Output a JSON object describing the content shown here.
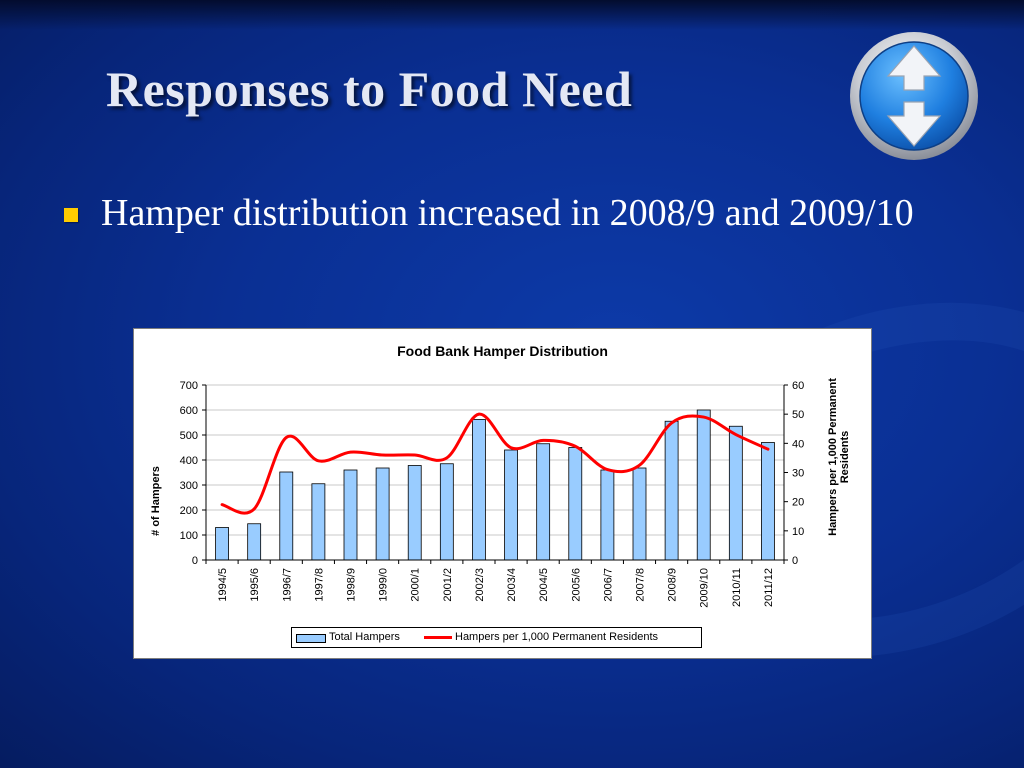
{
  "slide": {
    "title": "Responses to Food Need",
    "bullet": "Hamper distribution increased in 2008/9 and 2009/10",
    "logo_icon": "up-down-arrows-icon"
  },
  "colors": {
    "background": "#0a2f93",
    "bullet": "#ffcc00",
    "bar_fill": "#99ccff",
    "line": "#ff0000"
  },
  "chart_data": {
    "type": "bar",
    "title": "Food Bank Hamper Distribution",
    "ylabel": "# of Hampers",
    "y2label": "Hampers per 1,000 Permanent Residents",
    "categories": [
      "1994/5",
      "1995/6",
      "1996/7",
      "1997/8",
      "1998/9",
      "1999/0",
      "2000/1",
      "2001/2",
      "2002/3",
      "2003/4",
      "2004/5",
      "2005/6",
      "2006/7",
      "2007/8",
      "2008/9",
      "2009/10",
      "2010/11",
      "2011/12"
    ],
    "series": [
      {
        "name": "Total Hampers",
        "type": "bar",
        "axis": "left",
        "values": [
          130,
          145,
          352,
          305,
          360,
          368,
          378,
          385,
          562,
          440,
          465,
          450,
          360,
          368,
          555,
          600,
          535,
          470
        ]
      },
      {
        "name": "Hampers per 1,000 Permanent Residents",
        "type": "line",
        "axis": "right",
        "values": [
          19,
          17.5,
          42,
          34,
          37,
          36,
          36,
          35,
          50,
          38.5,
          41,
          39,
          31,
          32.5,
          47,
          49,
          43,
          38
        ]
      }
    ],
    "ylim": [
      0,
      700
    ],
    "yticks": [
      0,
      100,
      200,
      300,
      400,
      500,
      600,
      700
    ],
    "y2lim": [
      0,
      60
    ],
    "y2ticks": [
      0,
      10,
      20,
      30,
      40,
      50,
      60
    ],
    "grid": true,
    "legend_position": "bottom"
  }
}
